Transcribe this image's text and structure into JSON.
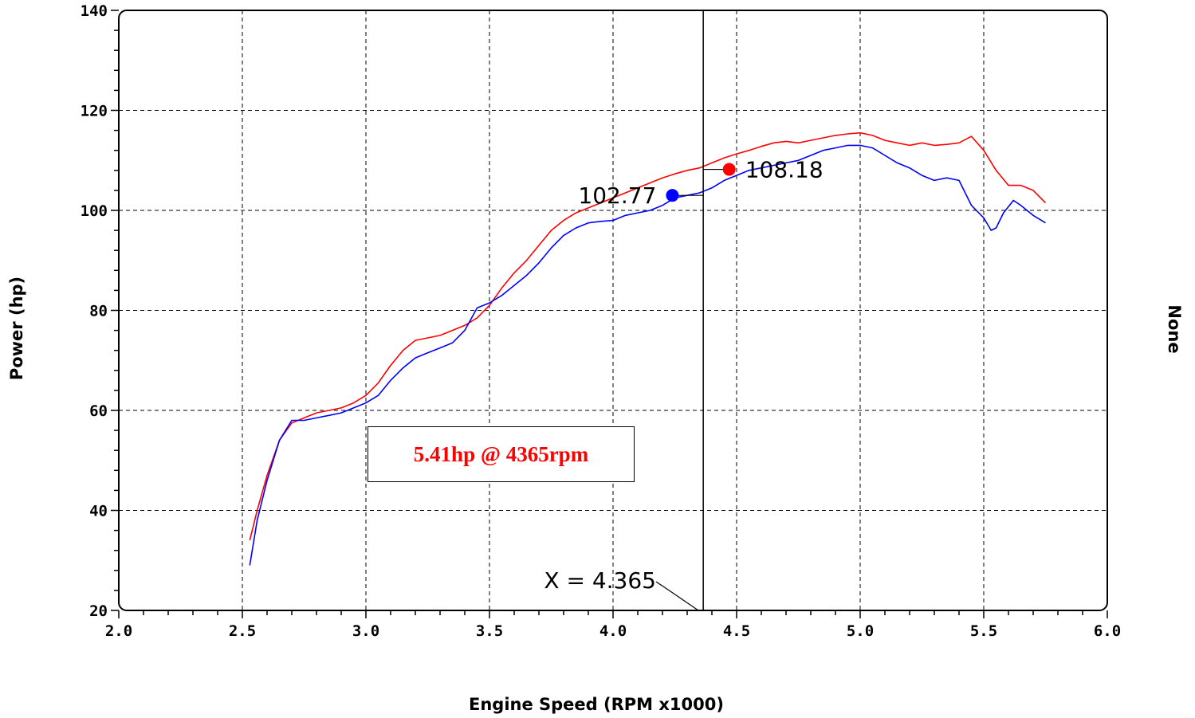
{
  "chart_data": {
    "type": "line",
    "xlabel": "Engine Speed (RPM x1000)",
    "ylabel": "Power (hp)",
    "right_label": "None",
    "xlim": [
      2.0,
      6.0
    ],
    "ylim": [
      20,
      140
    ],
    "x_ticks": [
      "2.0",
      "2.5",
      "3.0",
      "3.5",
      "4.0",
      "4.5",
      "5.0",
      "5.5",
      "6.0"
    ],
    "y_ticks": [
      "20",
      "40",
      "60",
      "80",
      "100",
      "120",
      "140"
    ],
    "grid": true,
    "cursor_x": 4.365,
    "cursor_label": "X = 4.365",
    "annotation": "5.41hp @ 4365rpm",
    "series": [
      {
        "color": "#ff0000",
        "marker": {
          "x": 4.47,
          "y": 108.2,
          "label": "108.18"
        },
        "x": [
          2.53,
          2.56,
          2.6,
          2.65,
          2.7,
          2.75,
          2.8,
          2.85,
          2.9,
          2.95,
          3.0,
          3.05,
          3.1,
          3.15,
          3.2,
          3.25,
          3.3,
          3.35,
          3.4,
          3.45,
          3.5,
          3.55,
          3.6,
          3.65,
          3.7,
          3.75,
          3.8,
          3.85,
          3.9,
          3.95,
          4.0,
          4.05,
          4.1,
          4.15,
          4.2,
          4.25,
          4.3,
          4.35,
          4.4,
          4.45,
          4.5,
          4.55,
          4.6,
          4.65,
          4.7,
          4.75,
          4.8,
          4.85,
          4.9,
          4.95,
          5.0,
          5.05,
          5.1,
          5.15,
          5.2,
          5.25,
          5.3,
          5.35,
          5.4,
          5.45,
          5.5,
          5.55,
          5.6,
          5.65,
          5.7,
          5.75
        ],
        "y": [
          34,
          40,
          47,
          54,
          57.5,
          58.5,
          59.5,
          60,
          60.5,
          61.5,
          63,
          65.5,
          69,
          72,
          74,
          74.5,
          75,
          76,
          77,
          78.5,
          81,
          84.5,
          87.5,
          90,
          93,
          96,
          98,
          99.5,
          100.5,
          101.5,
          102.5,
          103.5,
          104.5,
          105.5,
          106.5,
          107.3,
          108,
          108.5,
          109.5,
          110.5,
          111.3,
          112,
          112.8,
          113.5,
          113.8,
          113.5,
          114,
          114.5,
          115,
          115.3,
          115.5,
          115,
          114,
          113.5,
          113,
          113.5,
          113,
          113.2,
          113.5,
          114.8,
          112,
          108,
          105,
          105,
          104,
          101.5
        ]
      },
      {
        "color": "#0000ff",
        "marker": {
          "x": 4.24,
          "y": 103.0,
          "label": "102.77"
        },
        "x": [
          2.53,
          2.56,
          2.6,
          2.65,
          2.7,
          2.75,
          2.8,
          2.85,
          2.9,
          2.95,
          3.0,
          3.05,
          3.1,
          3.15,
          3.2,
          3.25,
          3.3,
          3.35,
          3.4,
          3.45,
          3.5,
          3.55,
          3.6,
          3.65,
          3.7,
          3.75,
          3.8,
          3.85,
          3.9,
          3.95,
          4.0,
          4.05,
          4.1,
          4.15,
          4.2,
          4.25,
          4.3,
          4.35,
          4.4,
          4.45,
          4.5,
          4.55,
          4.6,
          4.65,
          4.7,
          4.75,
          4.8,
          4.85,
          4.9,
          4.95,
          5.0,
          5.05,
          5.1,
          5.15,
          5.2,
          5.25,
          5.3,
          5.35,
          5.4,
          5.45,
          5.5,
          5.53,
          5.55,
          5.58,
          5.62,
          5.65,
          5.7,
          5.75
        ],
        "y": [
          29,
          38,
          46,
          54,
          58,
          58,
          58.5,
          59,
          59.5,
          60.5,
          61.5,
          63,
          66,
          68.5,
          70.5,
          71.5,
          72.5,
          73.5,
          76,
          80.5,
          81.5,
          83,
          85,
          87,
          89.5,
          92.5,
          95,
          96.5,
          97.5,
          97.8,
          98,
          99,
          99.5,
          100,
          101,
          102.5,
          103,
          103.5,
          104.5,
          106,
          107,
          108,
          108.5,
          109,
          109.5,
          110,
          111,
          112,
          112.5,
          113,
          113,
          112.5,
          111,
          109.5,
          108.5,
          107,
          106,
          106.5,
          106,
          101,
          98.5,
          96,
          96.5,
          99.5,
          102,
          101,
          99,
          97.5
        ]
      }
    ]
  }
}
